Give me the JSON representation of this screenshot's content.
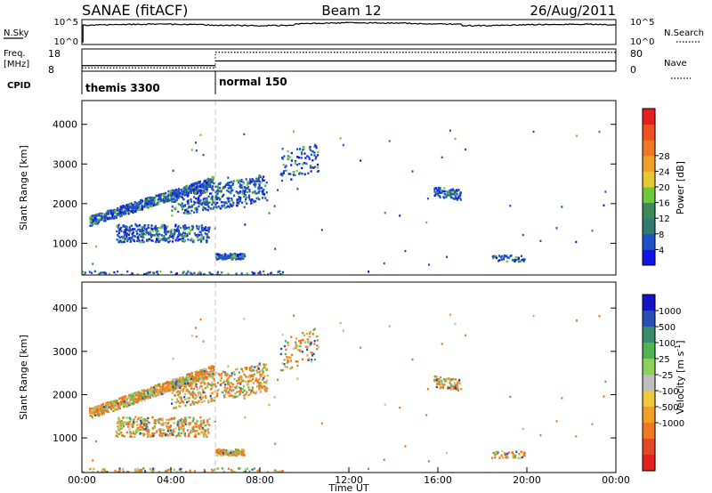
{
  "header": {
    "station": "SANAE (fitACF)",
    "beam": "Beam 12",
    "date": "26/Aug/2011"
  },
  "status": {
    "nsky_label": "N.Sky",
    "nsearch_label": "N.Search",
    "nsky_ticks": [
      "10^5",
      "10^0"
    ],
    "nsearch_ticks": [
      "10^5",
      "10^0"
    ],
    "freq_label_1": "Freq.",
    "freq_label_2": "[MHz]",
    "freq_ticks": [
      "18",
      "8"
    ],
    "nave_label": "Nave",
    "nave_ticks": [
      "80",
      "0"
    ],
    "cpid_label": "CPID",
    "cpid_segments": [
      {
        "start_hour": 0,
        "end_hour": 6,
        "label": "themis 3300"
      },
      {
        "start_hour": 6,
        "end_hour": 24,
        "label": "normal 150"
      }
    ],
    "freq_series": [
      {
        "start_hour": 0,
        "end_hour": 6,
        "value": 10.5
      },
      {
        "start_hour": 6,
        "end_hour": 24,
        "value": 12.6
      }
    ],
    "nave_series": [
      {
        "start_hour": 0,
        "end_hour": 6,
        "value": 12
      },
      {
        "start_hour": 6,
        "end_hour": 24,
        "value": 68
      }
    ]
  },
  "chart_data": [
    {
      "type": "heatmap",
      "name": "power",
      "xlabel": "",
      "ylabel": "Slant Range [km]",
      "xlim": [
        0,
        24
      ],
      "ylim": [
        200,
        4600
      ],
      "yticks": [
        "1000",
        "2000",
        "3000",
        "4000"
      ],
      "colorbar_label": "Power [dB]",
      "colorbar_ticks": [
        "4",
        "8",
        "12",
        "16",
        "20",
        "24",
        "28"
      ],
      "colorbar_colors": [
        "#1414e6",
        "#1e50c8",
        "#2e7d6e",
        "#3a8a5a",
        "#6fc83a",
        "#e6c832",
        "#f0a028",
        "#f07820",
        "#ee5020",
        "#e61e1e"
      ],
      "cpid_boundary_hour": 6
    },
    {
      "type": "heatmap",
      "name": "velocity",
      "xlabel": "Time UT",
      "ylabel": "Slant Range [km]",
      "xlim": [
        0,
        24
      ],
      "ylim": [
        200,
        4600
      ],
      "yticks": [
        "1000",
        "2000",
        "3000",
        "4000"
      ],
      "xticks": [
        "00:00",
        "04:00",
        "08:00",
        "12:00",
        "16:00",
        "20:00",
        "00:00"
      ],
      "colorbar_label": "Velocity [m s",
      "colorbar_label_sup": "-1",
      "colorbar_label_end": "]",
      "colorbar_ticks": [
        "1000",
        "500",
        "100",
        "25",
        "-25",
        "-100",
        "-500",
        "-1000"
      ],
      "colorbar_colors": [
        "#1414c8",
        "#2850b4",
        "#3a8a6e",
        "#50b450",
        "#8cd25a",
        "#bebebe",
        "#f0c83c",
        "#f0a028",
        "#f07820",
        "#e64628",
        "#e61e1e"
      ],
      "cpid_boundary_hour": 6
    }
  ]
}
